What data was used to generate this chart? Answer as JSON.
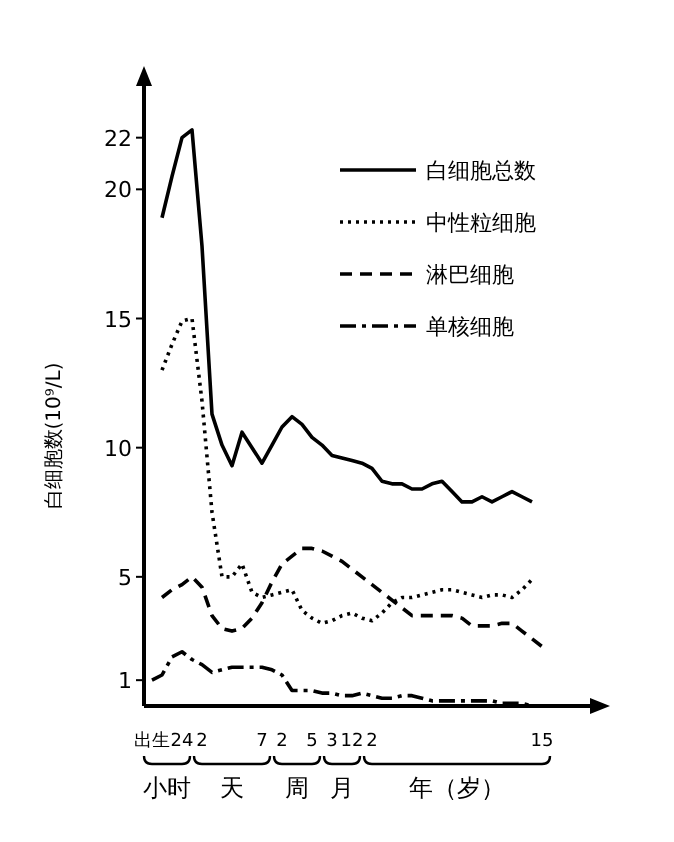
{
  "chart_data": {
    "type": "line",
    "ylabel": "白细胞数(10⁹/L)",
    "legend": "top right",
    "ylim": [
      0,
      24
    ],
    "categories": [
      "出生",
      null,
      null,
      "24",
      null,
      "2",
      null,
      null,
      null,
      null,
      null,
      "7",
      null,
      "2",
      null,
      null,
      "5",
      null,
      "3",
      null,
      "12",
      null,
      "2",
      null,
      null,
      null,
      null,
      null,
      null,
      null,
      null,
      null,
      null,
      null,
      null,
      null,
      null,
      null,
      null,
      "15"
    ],
    "yticks": [
      1,
      5,
      10,
      15,
      20,
      22
    ],
    "annotations": [
      "小时",
      "天",
      "周",
      "月",
      "年（岁）"
    ],
    "series": [
      {
        "name": "白细胞总数",
        "color": "#000000",
        "line_style": "solid",
        "values": [
          null,
          18.9,
          20.5,
          22.0,
          22.3,
          17.8,
          11.3,
          10.1,
          9.3,
          10.6,
          10.0,
          9.4,
          10.1,
          10.8,
          11.2,
          10.9,
          10.4,
          10.1,
          9.7,
          9.6,
          9.5,
          9.4,
          9.2,
          8.7,
          8.6,
          8.6,
          8.4,
          8.4,
          8.6,
          8.7,
          8.3,
          7.9,
          7.9,
          8.1,
          7.9,
          8.1,
          8.3,
          8.1,
          7.9,
          null
        ]
      },
      {
        "name": "中性粒细胞",
        "color": "#000000",
        "line_style": "dotted",
        "values": [
          null,
          13.0,
          14.0,
          14.9,
          15.0,
          11.8,
          7.5,
          5.0,
          5.0,
          5.5,
          4.4,
          4.2,
          4.3,
          4.4,
          4.5,
          3.7,
          3.4,
          3.2,
          3.3,
          3.5,
          3.6,
          3.4,
          3.3,
          3.6,
          4.0,
          4.2,
          4.2,
          4.3,
          4.4,
          4.5,
          4.5,
          4.4,
          4.3,
          4.2,
          4.3,
          4.3,
          4.2,
          4.5,
          4.9,
          null
        ]
      },
      {
        "name": "淋巴细胞",
        "color": "#000000",
        "line_style": "dashed",
        "values": [
          null,
          4.2,
          4.5,
          4.7,
          5.0,
          4.6,
          3.5,
          3.0,
          2.9,
          3.0,
          3.4,
          4.0,
          4.8,
          5.5,
          5.8,
          6.1,
          6.1,
          6.0,
          5.8,
          5.6,
          5.3,
          5.0,
          4.7,
          4.4,
          4.1,
          3.8,
          3.5,
          3.5,
          3.5,
          3.5,
          3.5,
          3.4,
          3.1,
          3.1,
          3.1,
          3.2,
          3.2,
          2.9,
          2.6,
          2.3
        ]
      },
      {
        "name": "单核细胞",
        "color": "#000000",
        "line_style": "dashdot",
        "values": [
          1.0,
          1.2,
          1.9,
          2.1,
          1.8,
          1.6,
          1.3,
          1.4,
          1.5,
          1.5,
          1.5,
          1.5,
          1.4,
          1.2,
          0.6,
          0.6,
          0.6,
          0.5,
          0.5,
          0.4,
          0.4,
          0.5,
          0.4,
          0.3,
          0.3,
          0.4,
          0.4,
          0.3,
          0.2,
          0.2,
          0.2,
          0.2,
          0.2,
          0.2,
          0.2,
          0.1,
          0.1,
          0.1,
          0.0,
          null
        ]
      }
    ]
  }
}
